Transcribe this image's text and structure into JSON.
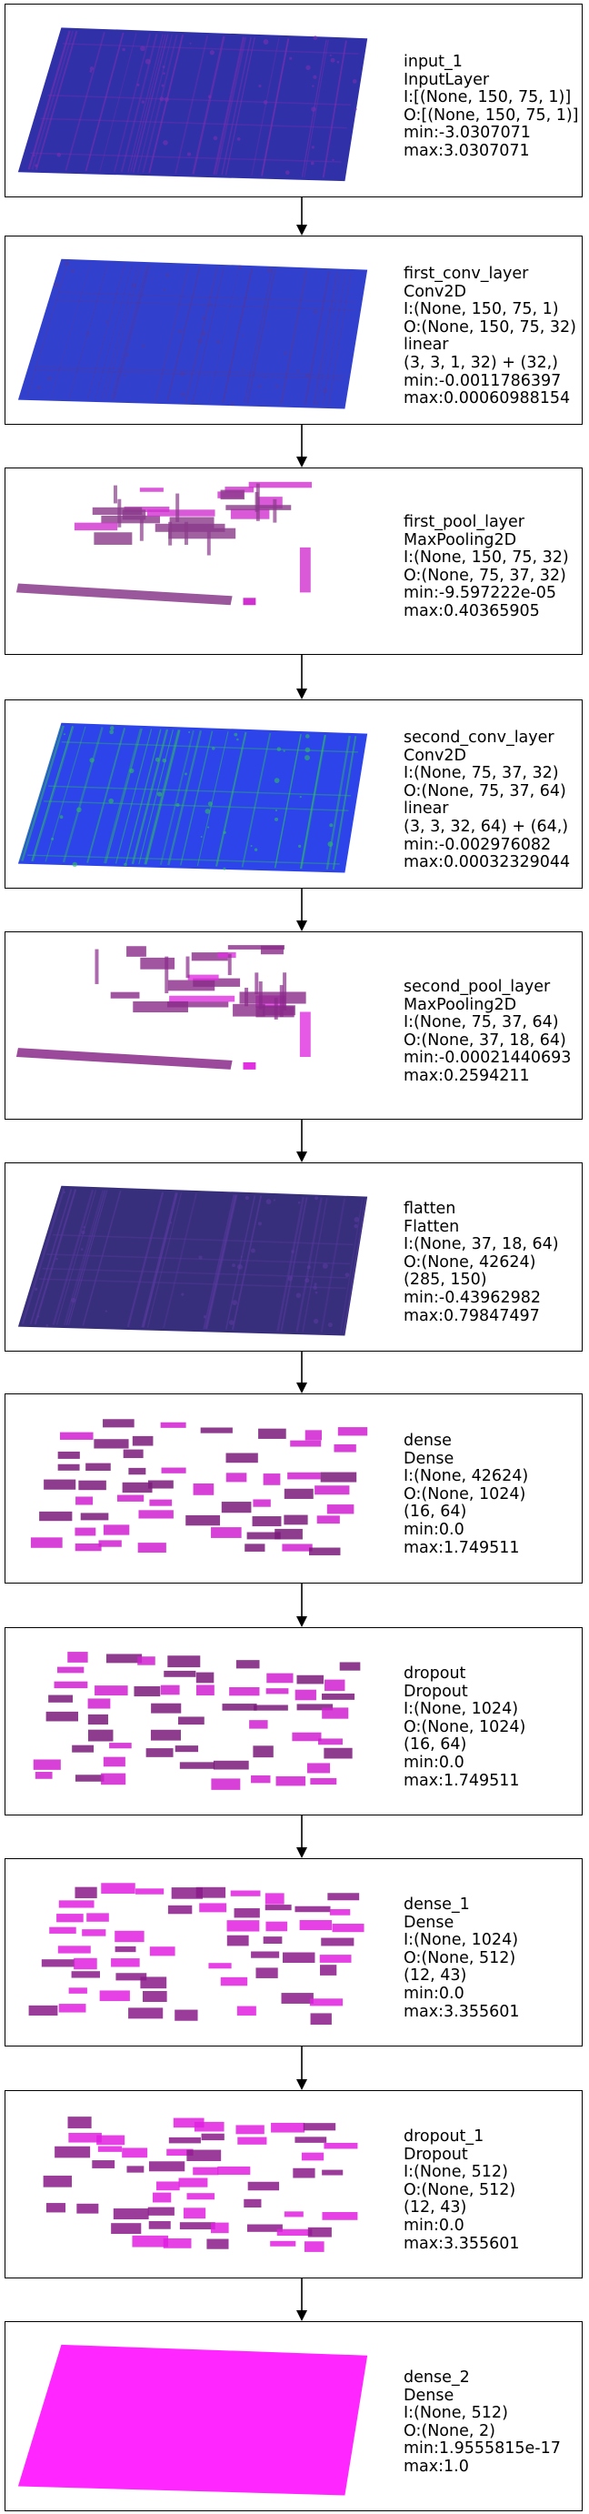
{
  "layers": [
    {
      "lines": [
        "input_1",
        "InputLayer",
        "I:[(None, 150, 75, 1)]",
        "O:[(None, 150, 75, 1)]",
        "min:-3.0307071",
        "max:3.0307071"
      ],
      "viz": {
        "style": "dense-plane",
        "color": "#1a1a9e",
        "accent": "#7a30b0"
      }
    },
    {
      "lines": [
        "first_conv_layer",
        "Conv2D",
        "I:(None, 150, 75, 1)",
        "O:(None, 150, 75, 32)",
        "linear",
        "(3, 3, 1, 32) + (32,)",
        "min:-0.0011786397",
        "max:0.00060988154"
      ],
      "viz": {
        "style": "dense-plane",
        "color": "#1c2cc8",
        "accent": "#4a3aa8"
      }
    },
    {
      "lines": [
        "first_pool_layer",
        "MaxPooling2D",
        "I:(None, 150, 75, 32)",
        "O:(None, 75, 37, 32)",
        "min:-9.597222e-05",
        "max:0.40365905"
      ],
      "viz": {
        "style": "pool",
        "color": "#8a3a8a",
        "accent": "#d030d0"
      }
    },
    {
      "lines": [
        "second_conv_layer",
        "Conv2D",
        "I:(None, 75, 37, 32)",
        "O:(None, 75, 37, 64)",
        "linear",
        "(3, 3, 32, 64) + (64,)",
        "min:-0.002976082",
        "max:0.00032329044"
      ],
      "viz": {
        "style": "dense-plane",
        "color": "#1530e8",
        "accent": "#30c060"
      }
    },
    {
      "lines": [
        "second_pool_layer",
        "MaxPooling2D",
        "I:(None, 75, 37, 64)",
        "O:(None, 37, 18, 64)",
        "min:-0.00021440693",
        "max:0.2594211"
      ],
      "viz": {
        "style": "pool",
        "color": "#8a2a8a",
        "accent": "#e030e0"
      }
    },
    {
      "lines": [
        "flatten",
        "Flatten",
        "I:(None, 37, 18, 64)",
        "O:(None, 42624)",
        "(285, 150)",
        "min:-0.43962982",
        "max:0.79847497"
      ],
      "viz": {
        "style": "dense-plane",
        "color": "#22186e",
        "accent": "#5a3aa0"
      }
    },
    {
      "lines": [
        "dense",
        "Dense",
        "I:(None, 42624)",
        "O:(None, 1024)",
        "(16, 64)",
        "min:0.0",
        "max:1.749511"
      ],
      "viz": {
        "style": "blocks",
        "color": "#7a1a7a",
        "accent": "#d020d0"
      }
    },
    {
      "lines": [
        "dropout",
        "Dropout",
        "I:(None, 1024)",
        "O:(None, 1024)",
        "(16, 64)",
        "min:0.0",
        "max:1.749511"
      ],
      "viz": {
        "style": "blocks",
        "color": "#7a1a7a",
        "accent": "#d020d0"
      }
    },
    {
      "lines": [
        "dense_1",
        "Dense",
        "I:(None, 1024)",
        "O:(None, 512)",
        "(12, 43)",
        "min:0.0",
        "max:3.355601"
      ],
      "viz": {
        "style": "blocks",
        "color": "#8a1a8a",
        "accent": "#e020e0"
      }
    },
    {
      "lines": [
        "dropout_1",
        "Dropout",
        "I:(None, 512)",
        "O:(None, 512)",
        "(12, 43)",
        "min:0.0",
        "max:3.355601"
      ],
      "viz": {
        "style": "blocks",
        "color": "#8a1a8a",
        "accent": "#e020e0"
      }
    },
    {
      "lines": [
        "dense_2",
        "Dense",
        "I:(None, 512)",
        "O:(None, 2)",
        "min:1.9555815e-17",
        "max:1.0"
      ],
      "viz": {
        "style": "solid",
        "color": "#ff00ff",
        "accent": "#ff00ff"
      }
    }
  ]
}
